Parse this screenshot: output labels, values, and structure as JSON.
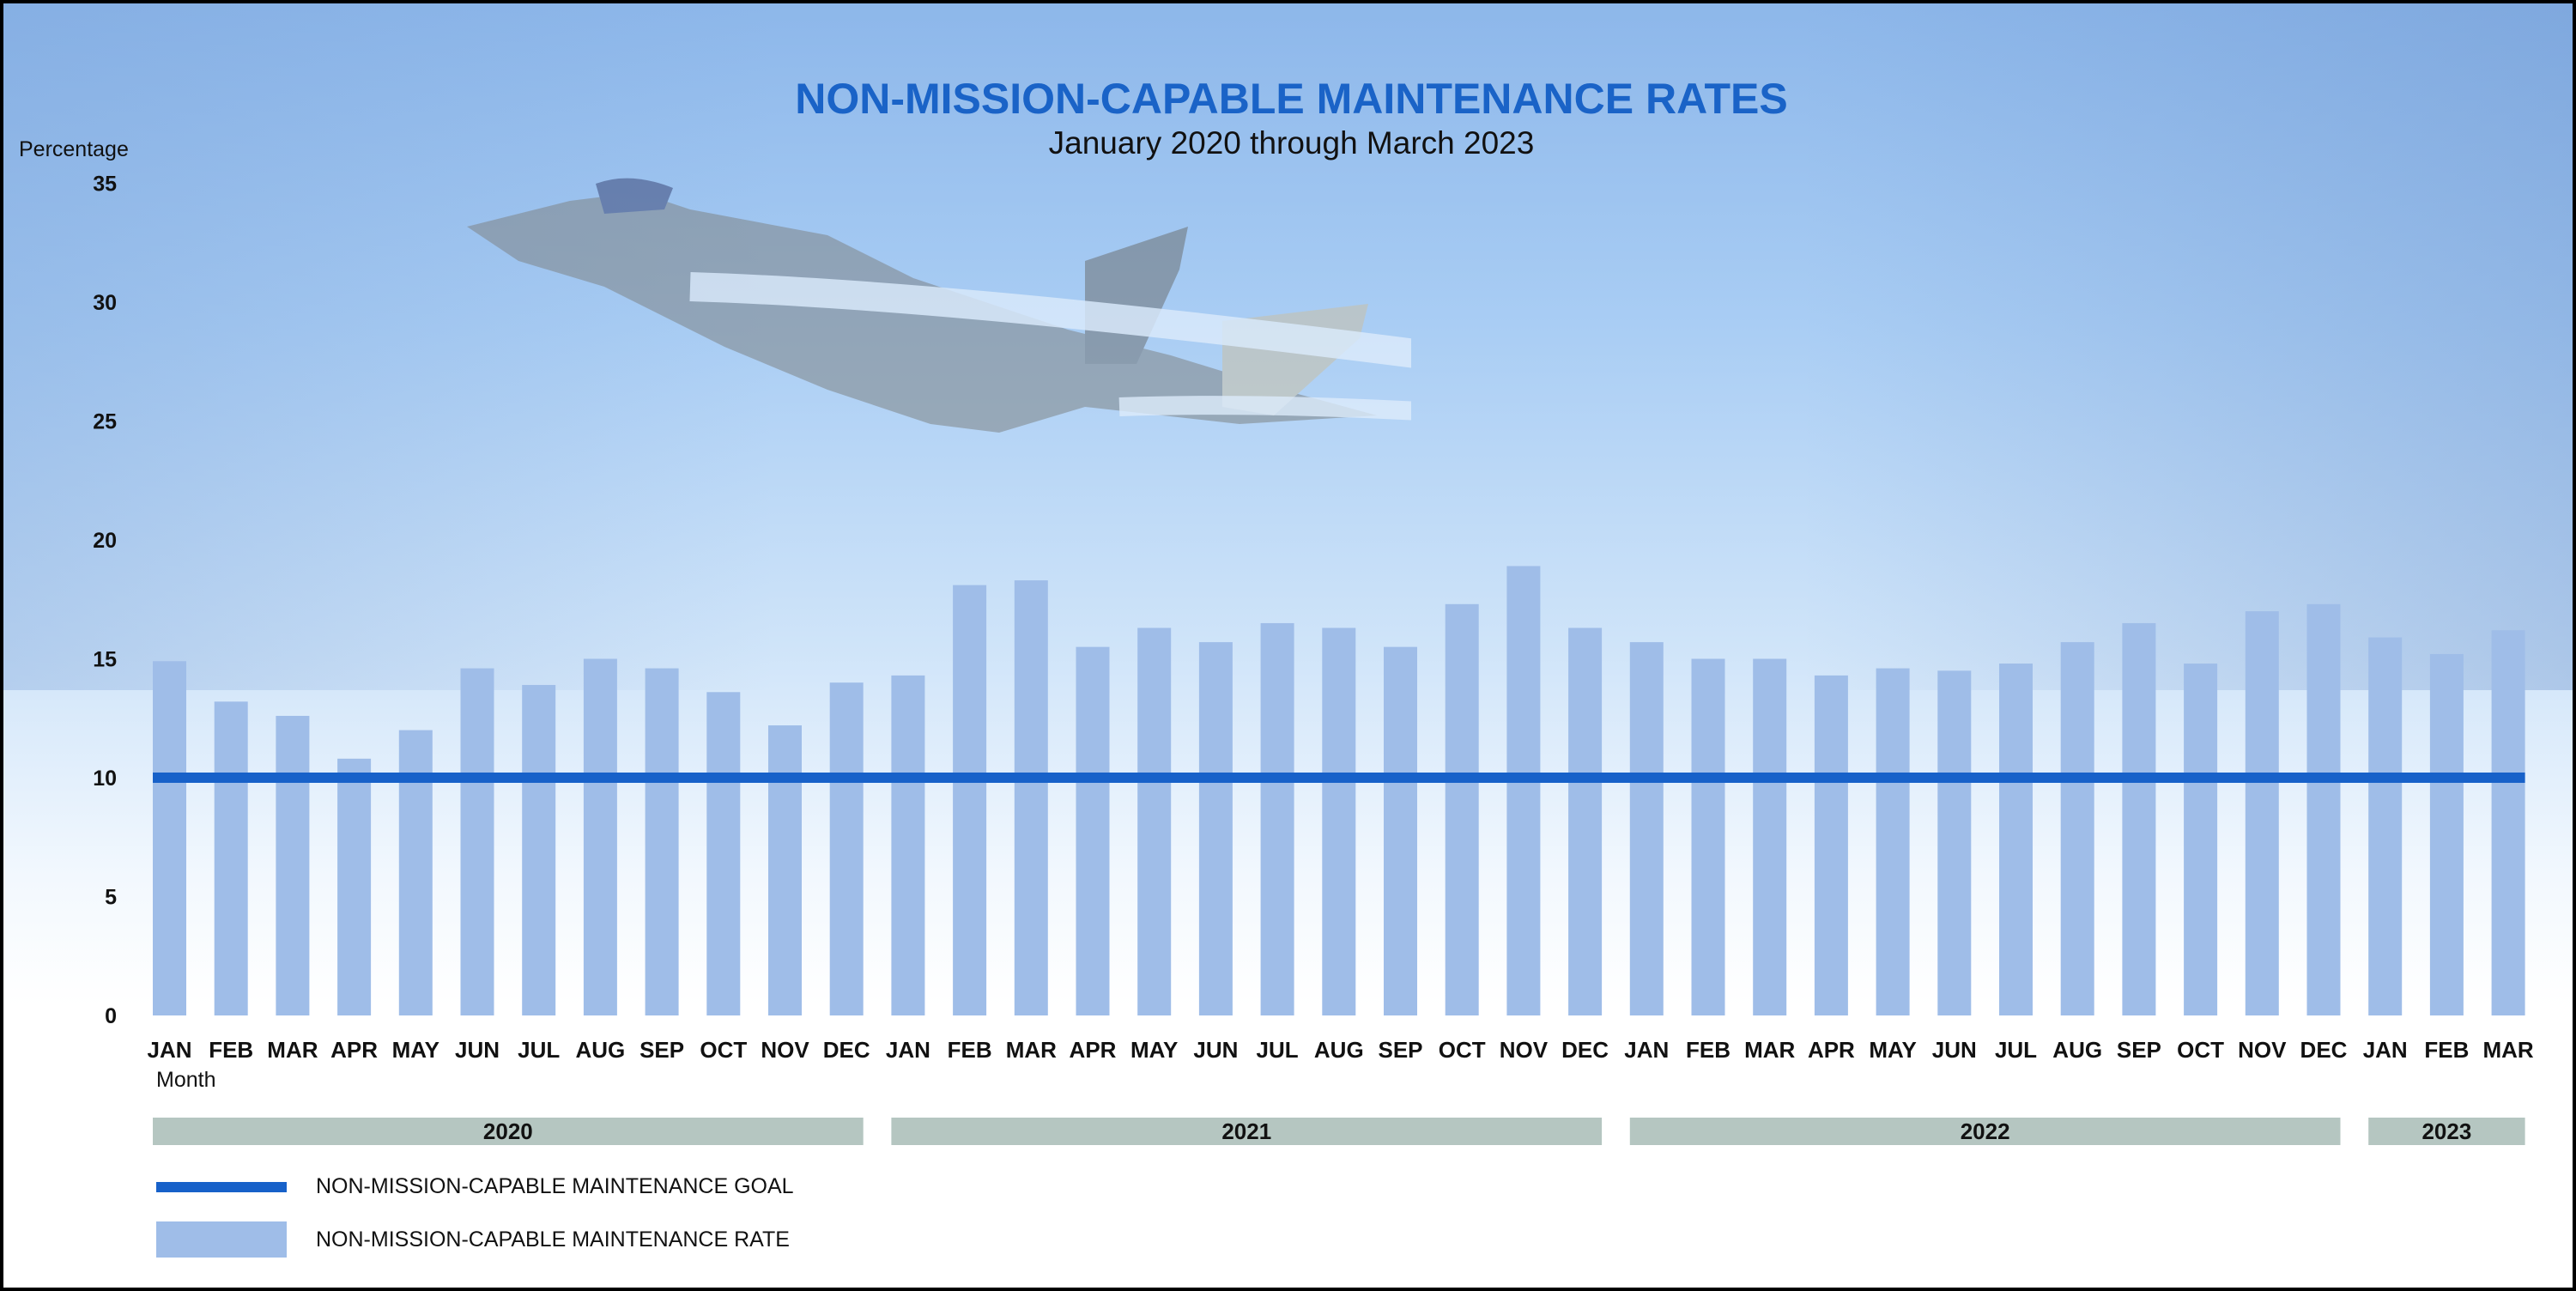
{
  "chart_data": {
    "type": "bar",
    "title": "NON-MISSION-CAPABLE MAINTENANCE RATES",
    "subtitle": "January 2020 through March 2023",
    "ylabel": "Percentage",
    "xlabel": "Month",
    "ylim": [
      0,
      35
    ],
    "yticks": [
      "0",
      "5",
      "10",
      "15",
      "20",
      "25",
      "30",
      "35"
    ],
    "grid": false,
    "categories": [
      "JAN",
      "FEB",
      "MAR",
      "APR",
      "MAY",
      "JUN",
      "JUL",
      "AUG",
      "SEP",
      "OCT",
      "NOV",
      "DEC",
      "JAN",
      "FEB",
      "MAR",
      "APR",
      "MAY",
      "JUN",
      "JUL",
      "AUG",
      "SEP",
      "OCT",
      "NOV",
      "DEC",
      "JAN",
      "FEB",
      "MAR",
      "APR",
      "MAY",
      "JUN",
      "JUL",
      "AUG",
      "SEP",
      "OCT",
      "NOV",
      "DEC",
      "JAN",
      "FEB",
      "MAR"
    ],
    "years": [
      {
        "label": "2020",
        "months": 12
      },
      {
        "label": "2021",
        "months": 12
      },
      {
        "label": "2022",
        "months": 12
      },
      {
        "label": "2023",
        "months": 3
      }
    ],
    "series": [
      {
        "name": "NON-MISSION-CAPABLE MAINTENANCE RATE",
        "type": "bar",
        "color": "#9fbde8",
        "values": [
          14.9,
          13.2,
          12.6,
          10.8,
          12.0,
          14.6,
          13.9,
          15.0,
          14.6,
          13.6,
          12.2,
          14.0,
          14.3,
          18.1,
          18.3,
          15.5,
          16.3,
          15.7,
          16.5,
          16.3,
          15.5,
          17.3,
          18.9,
          16.3,
          15.7,
          15.0,
          15.0,
          14.3,
          14.6,
          14.5,
          14.8,
          15.7,
          16.5,
          14.8,
          17.0,
          17.3,
          15.9,
          15.2,
          16.2
        ]
      },
      {
        "name": "NON-MISSION-CAPABLE MAINTENANCE GOAL",
        "type": "line",
        "color": "#1761c9",
        "value": 10
      }
    ],
    "legend": {
      "placement": "bottom-left",
      "entries": [
        {
          "label": "NON-MISSION-CAPABLE MAINTENANCE GOAL",
          "kind": "line"
        },
        {
          "label": "NON-MISSION-CAPABLE MAINTENANCE RATE",
          "kind": "bar"
        }
      ]
    },
    "background_image": "f-35-jet-icon"
  }
}
